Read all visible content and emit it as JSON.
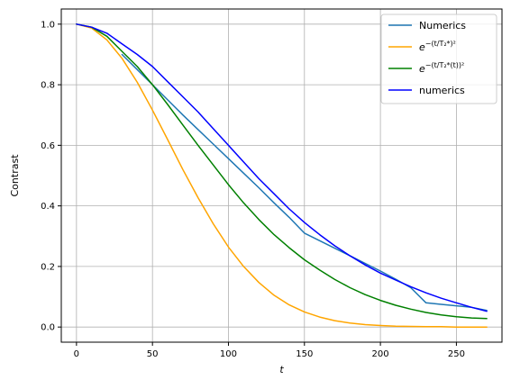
{
  "chart_data": {
    "type": "line",
    "xlabel": "t",
    "ylabel": "Contrast",
    "xlim": [
      -10,
      280
    ],
    "ylim": [
      -0.05,
      1.05
    ],
    "x_ticks": [
      0,
      50,
      100,
      150,
      200,
      250
    ],
    "y_ticks": [
      0.0,
      0.2,
      0.4,
      0.6,
      0.8,
      1.0
    ],
    "x_tick_labels": [
      "0",
      "50",
      "100",
      "150",
      "200",
      "250"
    ],
    "y_tick_labels": [
      "0.0",
      "0.2",
      "0.4",
      "0.6",
      "0.8",
      "1.0"
    ],
    "grid": true,
    "legend_position": "top-right",
    "series": [
      {
        "name": "Numerics",
        "color": "#1f77b4",
        "x": [
          30,
          40,
          50,
          60,
          70,
          80,
          90,
          100,
          110,
          120,
          130,
          140,
          150,
          160,
          170,
          180,
          190,
          200,
          210,
          220,
          230,
          240,
          250,
          260,
          270
        ],
        "y": [
          0.9,
          0.85,
          0.8,
          0.75,
          0.7,
          0.652,
          0.604,
          0.556,
          0.508,
          0.46,
          0.41,
          0.362,
          0.31,
          0.285,
          0.26,
          0.235,
          0.21,
          0.185,
          0.158,
          0.13,
          0.08,
          0.075,
          0.07,
          0.065,
          0.055
        ]
      },
      {
        "name": "e^{-(t/T2*)^2}",
        "color": "#ffa500",
        "x": [
          0,
          10,
          20,
          30,
          40,
          50,
          60,
          70,
          80,
          90,
          100,
          110,
          120,
          130,
          140,
          150,
          160,
          170,
          180,
          190,
          200,
          210,
          220,
          230,
          240,
          250,
          260,
          270
        ],
        "y": [
          1.0,
          0.987,
          0.948,
          0.887,
          0.808,
          0.716,
          0.619,
          0.52,
          0.427,
          0.341,
          0.264,
          0.2,
          0.147,
          0.105,
          0.073,
          0.05,
          0.033,
          0.021,
          0.013,
          0.008,
          0.005,
          0.003,
          0.002,
          0.001,
          0.001,
          0.0,
          0.0,
          0.0
        ]
      },
      {
        "name": "e^{-(t/T2*(t))^2}",
        "color": "#008000",
        "x": [
          0,
          10,
          20,
          30,
          40,
          50,
          60,
          70,
          80,
          90,
          100,
          110,
          120,
          130,
          140,
          150,
          160,
          170,
          180,
          190,
          200,
          210,
          220,
          230,
          240,
          250,
          260,
          270
        ],
        "y": [
          1.0,
          0.99,
          0.96,
          0.91,
          0.86,
          0.8,
          0.735,
          0.667,
          0.6,
          0.535,
          0.47,
          0.41,
          0.355,
          0.305,
          0.262,
          0.222,
          0.188,
          0.157,
          0.13,
          0.107,
          0.088,
          0.072,
          0.059,
          0.048,
          0.04,
          0.034,
          0.03,
          0.028
        ]
      },
      {
        "name": "numerics",
        "color": "#0000ff",
        "x": [
          0,
          10,
          20,
          30,
          40,
          50,
          60,
          70,
          80,
          90,
          100,
          110,
          120,
          130,
          140,
          150,
          160,
          170,
          180,
          190,
          200,
          210,
          220,
          230,
          240,
          250,
          260,
          270
        ],
        "y": [
          1.0,
          0.99,
          0.97,
          0.935,
          0.9,
          0.86,
          0.81,
          0.76,
          0.71,
          0.655,
          0.6,
          0.545,
          0.49,
          0.44,
          0.39,
          0.345,
          0.305,
          0.268,
          0.235,
          0.205,
          0.178,
          0.155,
          0.133,
          0.113,
          0.095,
          0.08,
          0.065,
          0.052
        ]
      }
    ]
  }
}
